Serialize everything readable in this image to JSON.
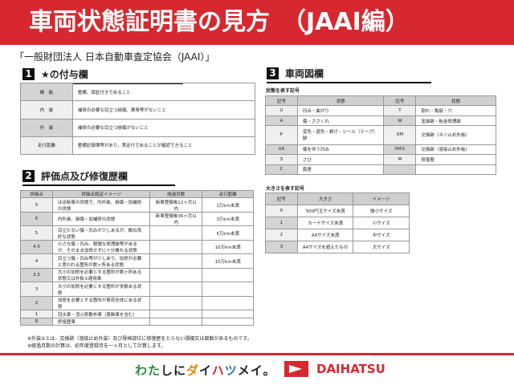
{
  "header": {
    "title": "車両状態証明書の見方　（JAAI編）"
  },
  "subtitle": "「一般財団法人 日本自動車査定協会（JAAI）」",
  "section1": {
    "num": "1",
    "title": "★の付与欄",
    "rows": [
      [
        "機　能",
        "整備、保証付きであること"
      ],
      [
        "内　装",
        "補修の必要な目立つ損傷、悪臭等がないこと"
      ],
      [
        "外　装",
        "補修の必要な目立つ損傷がないこと"
      ],
      [
        "走行距離",
        "整備記録簿等があり、実走行であることが確認できること"
      ]
    ]
  },
  "section2": {
    "num": "2",
    "title": "評価点及び修復歴欄",
    "headers": [
      "評価点",
      "評価点設定イメージ",
      "経過月数",
      "走行距離"
    ],
    "rows": [
      [
        "5",
        "ほぼ新車の状態で、内外装、損傷・加補修の状態",
        "新車登録後12ヶ月以内",
        "1万km未満"
      ],
      [
        "6",
        "内外装、損傷・加補修の状態",
        "新車登録後36ヶ月以内",
        "3万km未満"
      ],
      [
        "5",
        "目立たない傷・凹みが少しあるが、概ね良好な状態",
        "",
        "5万km未満"
      ],
      [
        "4.5",
        "小さな傷・凹み、軽微な修理跡等があるが、そのまま加修せずに十分乗れる状態",
        "",
        "10万km未満"
      ],
      [
        "4",
        "目立つ傷・凹み等が少しあり、加修が必要と思われる箇所が数ヶ所ある状態",
        "",
        "15万km未満"
      ],
      [
        "3.5",
        "大小の加修を必要とする箇所が数ヶ所ある状態又は外板②適用車",
        "",
        ""
      ],
      [
        "3",
        "大小の加修を必要とする箇所が多数ある状態",
        "",
        ""
      ],
      [
        "2",
        "加修を必要とする箇所が車両全体にある状態",
        "",
        ""
      ],
      [
        "1",
        "冠水車・消火剤散布車（腐蝕車を含む）",
        "",
        ""
      ],
      [
        "R",
        "修復歴車",
        "",
        ""
      ]
    ]
  },
  "notes": [
    "※外装②とは、交換跡（溶接止め外装）及び骨格部位に修復歴をとらない損傷又は腐蝕があるものです。",
    "※経過月数の計算は、初年度登録月を一ヶ月として計算します。"
  ],
  "section3": {
    "num": "3",
    "title": "車両図欄",
    "state_label": "状態を表す記号",
    "state_headers": [
      "記号",
      "状態",
      "記号",
      "状態"
    ],
    "state_rows": [
      [
        "U",
        "凹み・曲がり",
        "T",
        "割れ・亀裂・穴"
      ],
      [
        "A",
        "傷・ささくれ",
        "W",
        "塗装跡・板金修理跡"
      ],
      [
        "P",
        "変色・退色・剥げ・シール（テープ）跡",
        "XM",
        "交換跡（ネジ止め外板）"
      ],
      [
        "UA",
        "傷を伴う凹み",
        "XM②",
        "交換跡（溶接止め外板）"
      ],
      [
        "S",
        "さび",
        "M",
        "修復歴"
      ],
      [
        "C",
        "腐食",
        "",
        ""
      ]
    ],
    "size_label": "大きさを表す記号",
    "size_headers": [
      "記号",
      "大きさ",
      "イメージ"
    ],
    "size_rows": [
      [
        "0",
        "500円玉サイズ未満",
        "微小サイズ"
      ],
      [
        "1",
        "カードサイズ未満",
        "小サイズ"
      ],
      [
        "2",
        "A4サイズ未満",
        "中サイズ"
      ],
      [
        "3",
        "A4サイズを超えたもの",
        "大サイズ"
      ]
    ]
  },
  "footer": {
    "slogan": "わたしにダイハツメイ。",
    "brand": "DAIHATSU"
  },
  "colors": {
    "accent": "#d7282f"
  }
}
